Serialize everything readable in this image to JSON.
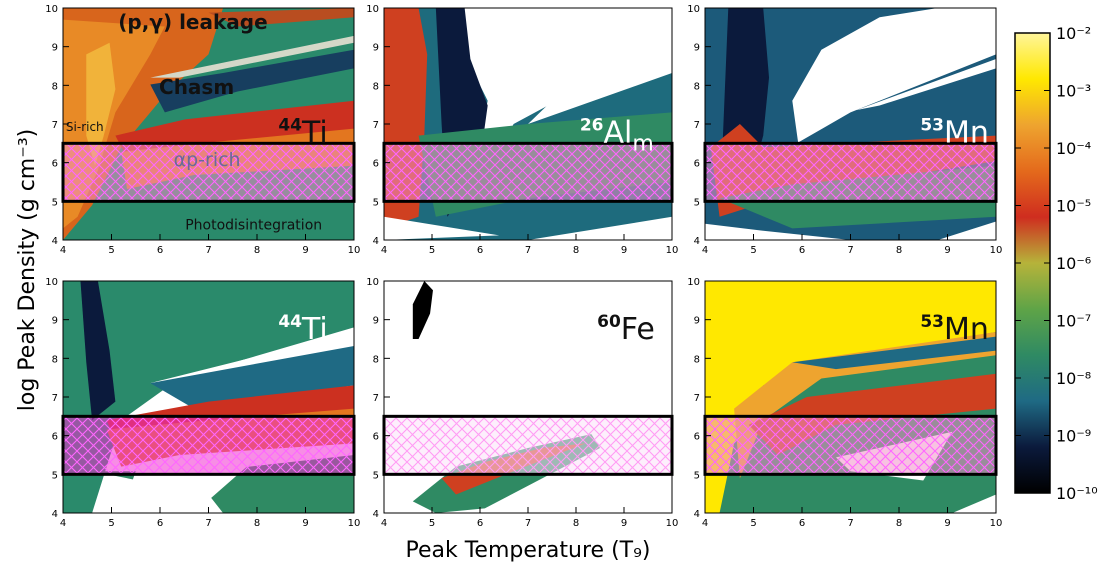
{
  "figure": {
    "ylabel": "log Peak Density (g cm⁻³)",
    "xlabel": "Peak Temperature (T₉)"
  },
  "colorbar": {
    "type": "log",
    "range": [
      1e-10,
      0.01
    ],
    "ticks": [
      "10⁻²",
      "10⁻³",
      "10⁻⁴",
      "10⁻⁵",
      "10⁻⁶",
      "10⁻⁷",
      "10⁻⁸",
      "10⁻⁹",
      "10⁻¹⁰"
    ],
    "colors": [
      "#000000",
      "#0b1a3c",
      "#1f6a84",
      "#2f8a63",
      "#5fa447",
      "#b6b33a",
      "#cf2d1f",
      "#e46a1c",
      "#eea42f",
      "#ffe800",
      "#fff59a"
    ]
  },
  "chart_data": [
    {
      "type": "heatmap",
      "panel": "top-left",
      "isotope": {
        "mass": "44",
        "symbol": "Ti",
        "sub": ""
      },
      "xlim": [
        4,
        10
      ],
      "ylim": [
        4,
        10
      ],
      "xticks": [
        "4",
        "5",
        "6",
        "7",
        "8",
        "9",
        "10"
      ],
      "yticks": [
        "4",
        "5",
        "6",
        "7",
        "8",
        "9",
        "10"
      ],
      "annotations": [
        "(p,γ)  leakage",
        "Chasm",
        "Si-rich",
        "αp-rich",
        "Photodisintegration"
      ],
      "hatched_band": [
        5.0,
        6.5
      ],
      "band_fill": "#f090c8"
    },
    {
      "type": "heatmap",
      "panel": "top-middle",
      "isotope": {
        "mass": "26",
        "symbol": "Al",
        "sub": "m"
      },
      "xlim": [
        4,
        10
      ],
      "ylim": [
        4,
        10
      ],
      "xticks": [
        "4",
        "5",
        "6",
        "7",
        "8",
        "9",
        "10"
      ],
      "yticks": [
        "4",
        "5",
        "6",
        "7",
        "8",
        "9",
        "10"
      ],
      "annotations": [],
      "hatched_band": [
        5.0,
        6.5
      ],
      "band_fill": "#f090c8"
    },
    {
      "type": "heatmap",
      "panel": "top-right",
      "isotope": {
        "mass": "53",
        "symbol": "Mn",
        "sub": ""
      },
      "xlim": [
        4,
        10
      ],
      "ylim": [
        4,
        10
      ],
      "xticks": [
        "4",
        "5",
        "6",
        "7",
        "8",
        "9",
        "10"
      ],
      "yticks": [
        "4",
        "5",
        "6",
        "7",
        "8",
        "9",
        "10"
      ],
      "annotations": [],
      "hatched_band": [
        5.0,
        6.5
      ],
      "band_fill": "#f090c8"
    },
    {
      "type": "heatmap",
      "panel": "bottom-left",
      "isotope": {
        "mass": "44",
        "symbol": "Ti",
        "sub": ""
      },
      "xlim": [
        4,
        10
      ],
      "ylim": [
        4,
        10
      ],
      "xticks": [
        "4",
        "5",
        "6",
        "7",
        "8",
        "9",
        "10"
      ],
      "yticks": [
        "4",
        "5",
        "6",
        "7",
        "8",
        "9",
        "10"
      ],
      "annotations": [],
      "hatched_band": [
        5.0,
        6.5
      ],
      "band_fill": "#f030d0"
    },
    {
      "type": "heatmap",
      "panel": "bottom-middle",
      "isotope": {
        "mass": "60",
        "symbol": "Fe",
        "sub": ""
      },
      "xlim": [
        4,
        10
      ],
      "ylim": [
        4,
        10
      ],
      "xticks": [
        "4",
        "5",
        "6",
        "7",
        "8",
        "9",
        "10"
      ],
      "yticks": [
        "4",
        "5",
        "6",
        "7",
        "8",
        "9",
        "10"
      ],
      "annotations": [],
      "hatched_band": [
        5.0,
        6.5
      ],
      "band_fill": "#fbe0fa"
    },
    {
      "type": "heatmap",
      "panel": "bottom-right",
      "isotope": {
        "mass": "53",
        "symbol": "Mn",
        "sub": ""
      },
      "xlim": [
        4,
        10
      ],
      "ylim": [
        4,
        10
      ],
      "xticks": [
        "4",
        "5",
        "6",
        "7",
        "8",
        "9",
        "10"
      ],
      "yticks": [
        "4",
        "5",
        "6",
        "7",
        "8",
        "9",
        "10"
      ],
      "annotations": [],
      "hatched_band": [
        5.0,
        6.5
      ],
      "band_fill": "#f090c8"
    }
  ]
}
